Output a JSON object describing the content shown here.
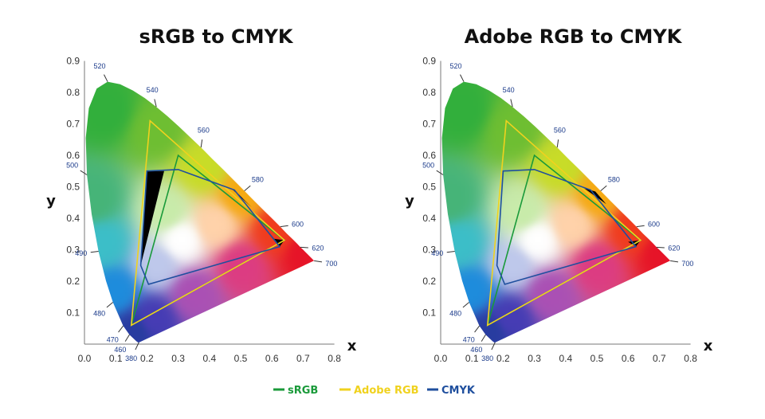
{
  "chart_data": [
    {
      "type": "scatter",
      "title": "sRGB to CMYK",
      "xlabel": "x",
      "ylabel": "y",
      "xlim": [
        0.0,
        0.8
      ],
      "ylim": [
        0.0,
        0.9
      ],
      "x_ticks": [
        "0.0",
        "0.1",
        "0.2",
        "0.3",
        "0.4",
        "0.5",
        "0.6",
        "0.7",
        "0.8"
      ],
      "y_ticks": [
        "0.1",
        "0.2",
        "0.3",
        "0.4",
        "0.5",
        "0.6",
        "0.7",
        "0.8",
        "0.9"
      ],
      "wavelength_labels": [
        {
          "text": "380",
          "x": 0.174,
          "y": 0.005
        },
        {
          "text": "460",
          "x": 0.144,
          "y": 0.03
        },
        {
          "text": "470",
          "x": 0.124,
          "y": 0.058
        },
        {
          "text": "480",
          "x": 0.091,
          "y": 0.133
        },
        {
          "text": "490",
          "x": 0.045,
          "y": 0.295
        },
        {
          "text": "500",
          "x": 0.008,
          "y": 0.538
        },
        {
          "text": "520",
          "x": 0.074,
          "y": 0.834
        },
        {
          "text": "540",
          "x": 0.23,
          "y": 0.754
        },
        {
          "text": "560",
          "x": 0.373,
          "y": 0.625
        },
        {
          "text": "580",
          "x": 0.512,
          "y": 0.487
        },
        {
          "text": "600",
          "x": 0.627,
          "y": 0.373
        },
        {
          "text": "620",
          "x": 0.691,
          "y": 0.308
        },
        {
          "text": "700",
          "x": 0.735,
          "y": 0.265
        }
      ],
      "series": [
        {
          "name": "sRGB",
          "points": [
            [
              0.64,
              0.33
            ],
            [
              0.3,
              0.6
            ],
            [
              0.15,
              0.06
            ]
          ]
        },
        {
          "name": "Adobe RGB",
          "points": [
            [
              0.64,
              0.33
            ],
            [
              0.21,
              0.71
            ],
            [
              0.15,
              0.06
            ]
          ]
        },
        {
          "name": "CMYK",
          "points": [
            [
              0.2,
              0.55
            ],
            [
              0.3,
              0.555
            ],
            [
              0.48,
              0.49
            ],
            [
              0.625,
              0.31
            ],
            [
              0.205,
              0.19
            ],
            [
              0.18,
              0.25
            ]
          ]
        }
      ]
    },
    {
      "type": "scatter",
      "title": "Adobe RGB to CMYK",
      "xlabel": "x",
      "ylabel": "y",
      "xlim": [
        0.0,
        0.8
      ],
      "ylim": [
        0.0,
        0.9
      ],
      "x_ticks": [
        "0.0",
        "0.1",
        "0.2",
        "0.3",
        "0.4",
        "0.5",
        "0.6",
        "0.7",
        "0.8"
      ],
      "y_ticks": [
        "0.1",
        "0.2",
        "0.3",
        "0.4",
        "0.5",
        "0.6",
        "0.7",
        "0.8",
        "0.9"
      ],
      "wavelength_labels": [
        {
          "text": "380",
          "x": 0.174,
          "y": 0.005
        },
        {
          "text": "460",
          "x": 0.144,
          "y": 0.03
        },
        {
          "text": "470",
          "x": 0.124,
          "y": 0.058
        },
        {
          "text": "480",
          "x": 0.091,
          "y": 0.133
        },
        {
          "text": "490",
          "x": 0.045,
          "y": 0.295
        },
        {
          "text": "500",
          "x": 0.008,
          "y": 0.538
        },
        {
          "text": "520",
          "x": 0.074,
          "y": 0.834
        },
        {
          "text": "540",
          "x": 0.23,
          "y": 0.754
        },
        {
          "text": "560",
          "x": 0.373,
          "y": 0.625
        },
        {
          "text": "580",
          "x": 0.512,
          "y": 0.487
        },
        {
          "text": "600",
          "x": 0.627,
          "y": 0.373
        },
        {
          "text": "620",
          "x": 0.691,
          "y": 0.308
        },
        {
          "text": "700",
          "x": 0.735,
          "y": 0.265
        }
      ],
      "series": [
        {
          "name": "sRGB",
          "points": [
            [
              0.64,
              0.33
            ],
            [
              0.3,
              0.6
            ],
            [
              0.15,
              0.06
            ]
          ]
        },
        {
          "name": "Adobe RGB",
          "points": [
            [
              0.64,
              0.33
            ],
            [
              0.21,
              0.71
            ],
            [
              0.15,
              0.06
            ]
          ]
        },
        {
          "name": "CMYK",
          "points": [
            [
              0.2,
              0.55
            ],
            [
              0.3,
              0.555
            ],
            [
              0.48,
              0.49
            ],
            [
              0.625,
              0.31
            ],
            [
              0.205,
              0.19
            ],
            [
              0.18,
              0.25
            ]
          ]
        }
      ]
    }
  ],
  "legend": [
    {
      "label": "sRGB",
      "color": "#1a9a3a"
    },
    {
      "label": "Adobe RGB",
      "color": "#f0d21e"
    },
    {
      "label": "CMYK",
      "color": "#1f4f9e"
    }
  ],
  "colors": {
    "srgb": "#1a9a3a",
    "adobe_rgb": "#f0d21e",
    "cmyk": "#1f4f9e",
    "out_of_gamut": "#000000",
    "wavelength_label": "#1a3a8a"
  }
}
